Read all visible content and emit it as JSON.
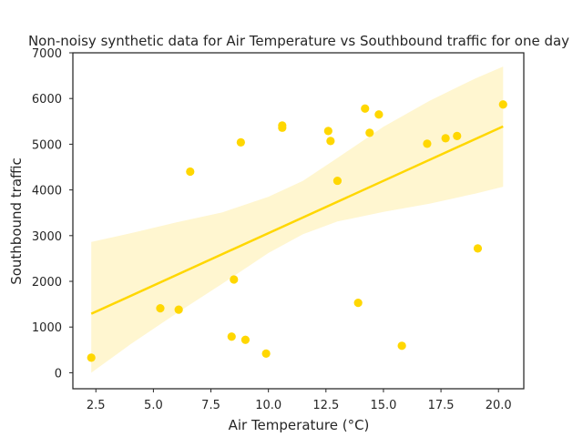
{
  "chart_data": {
    "type": "scatter",
    "title": "Non-noisy synthetic data for Air Temperature vs Southbound traffic for one day",
    "xlabel": "Air Temperature (°C)",
    "ylabel": "Southbound traffic",
    "xlim": [
      1.5,
      21.1
    ],
    "ylim": [
      -350,
      7000
    ],
    "xticks": [
      2.5,
      5.0,
      7.5,
      10.0,
      12.5,
      15.0,
      17.5,
      20.0
    ],
    "xtick_labels": [
      "2.5",
      "5.0",
      "7.5",
      "10.0",
      "12.5",
      "15.0",
      "17.5",
      "20.0"
    ],
    "yticks": [
      0,
      1000,
      2000,
      3000,
      4000,
      5000,
      6000,
      7000
    ],
    "ytick_labels": [
      "0",
      "1000",
      "2000",
      "3000",
      "4000",
      "5000",
      "6000",
      "7000"
    ],
    "grid": false,
    "point_color": "#ffd700",
    "line_color": "#ffd700",
    "band_color": "#fff6d0",
    "points": [
      {
        "x": 2.3,
        "y": 330
      },
      {
        "x": 5.3,
        "y": 1410
      },
      {
        "x": 6.1,
        "y": 1380
      },
      {
        "x": 6.6,
        "y": 4400
      },
      {
        "x": 8.4,
        "y": 790
      },
      {
        "x": 8.5,
        "y": 2040
      },
      {
        "x": 8.8,
        "y": 5040
      },
      {
        "x": 9.0,
        "y": 720
      },
      {
        "x": 9.9,
        "y": 420
      },
      {
        "x": 10.6,
        "y": 5410
      },
      {
        "x": 10.6,
        "y": 5360
      },
      {
        "x": 12.6,
        "y": 5290
      },
      {
        "x": 12.7,
        "y": 5070
      },
      {
        "x": 13.0,
        "y": 4200
      },
      {
        "x": 13.9,
        "y": 1530
      },
      {
        "x": 14.2,
        "y": 5780
      },
      {
        "x": 14.4,
        "y": 5250
      },
      {
        "x": 14.8,
        "y": 5650
      },
      {
        "x": 15.8,
        "y": 590
      },
      {
        "x": 16.9,
        "y": 5010
      },
      {
        "x": 17.7,
        "y": 5130
      },
      {
        "x": 18.2,
        "y": 5180
      },
      {
        "x": 19.1,
        "y": 2720
      },
      {
        "x": 20.2,
        "y": 5870
      }
    ],
    "regression_line": [
      {
        "x": 2.3,
        "y": 1290
      },
      {
        "x": 20.2,
        "y": 5390
      }
    ],
    "confidence_band": {
      "x": [
        2.3,
        4.0,
        6.0,
        8.0,
        10.0,
        11.5,
        13.0,
        15.0,
        17.0,
        19.0,
        20.2
      ],
      "upper": [
        2860,
        3050,
        3290,
        3510,
        3850,
        4200,
        4700,
        5380,
        5950,
        6440,
        6700
      ],
      "lower": [
        0,
        620,
        1300,
        1950,
        2620,
        3030,
        3310,
        3520,
        3700,
        3920,
        4070
      ]
    }
  }
}
